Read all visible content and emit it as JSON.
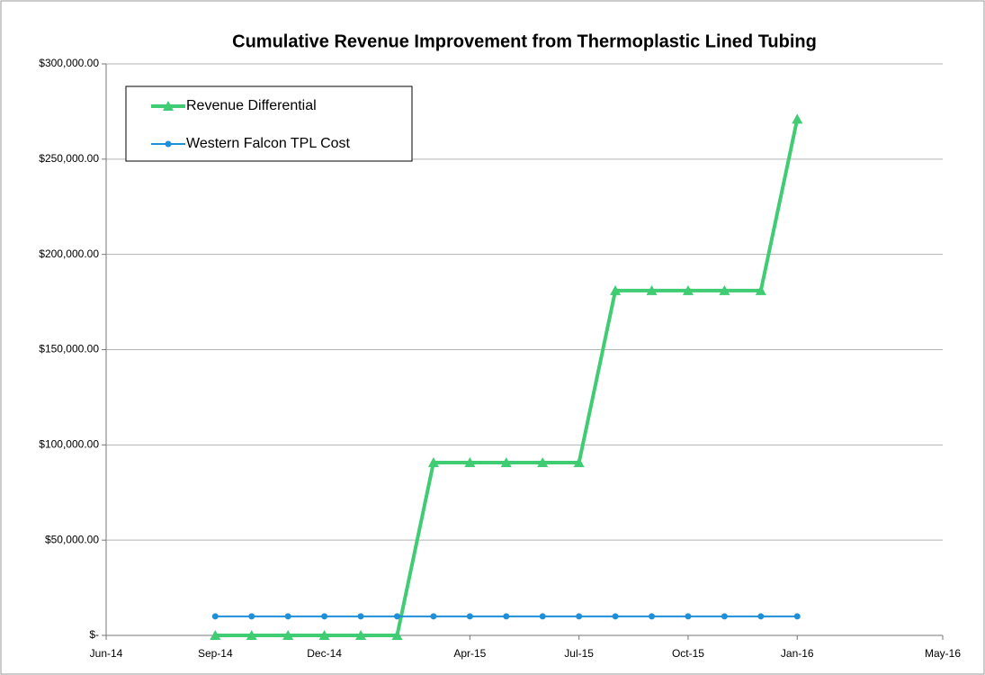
{
  "chart_data": {
    "type": "line",
    "title": "Cumulative Revenue Improvement from Thermoplastic Lined Tubing",
    "x": [
      "2014-09",
      "2014-10",
      "2014-11",
      "2014-12",
      "2015-01",
      "2015-02",
      "2015-03",
      "2015-04",
      "2015-05",
      "2015-06",
      "2015-07",
      "2015-08",
      "2015-09",
      "2015-10",
      "2015-11",
      "2015-12",
      "2016-01"
    ],
    "series": [
      {
        "name": "Revenue Differential",
        "color": "#3fcc72",
        "marker": "triangle",
        "values": [
          0,
          0,
          0,
          0,
          0,
          0,
          90700,
          90700,
          90700,
          90700,
          90700,
          181000,
          181000,
          181000,
          181000,
          181000,
          271000
        ]
      },
      {
        "name": "Western Falcon TPL Cost",
        "color": "#1f8fd8",
        "marker": "circle",
        "values": [
          10000,
          10000,
          10000,
          10000,
          10000,
          10000,
          10000,
          10000,
          10000,
          10000,
          10000,
          10000,
          10000,
          10000,
          10000,
          10000,
          10000
        ]
      }
    ],
    "xlim": [
      "2014-06",
      "2016-05"
    ],
    "xticks": [
      {
        "value": "2014-06",
        "label": "Jun-14"
      },
      {
        "value": "2014-09",
        "label": "Sep-14"
      },
      {
        "value": "2014-12",
        "label": "Dec-14"
      },
      {
        "value": "2015-04",
        "label": "Apr-15"
      },
      {
        "value": "2015-07",
        "label": "Jul-15"
      },
      {
        "value": "2015-10",
        "label": "Oct-15"
      },
      {
        "value": "2016-01",
        "label": "Jan-16"
      },
      {
        "value": "2016-05",
        "label": "May-16"
      }
    ],
    "ylim": [
      0,
      300000
    ],
    "yticks": [
      {
        "value": 0,
        "label": "$-"
      },
      {
        "value": 50000,
        "label": "$50,000.00"
      },
      {
        "value": 100000,
        "label": "$100,000.00"
      },
      {
        "value": 150000,
        "label": "$150,000.00"
      },
      {
        "value": 200000,
        "label": "$200,000.00"
      },
      {
        "value": 250000,
        "label": "$250,000.00"
      },
      {
        "value": 300000,
        "label": "$300,000.00"
      }
    ],
    "grid": true,
    "legend": "upper left"
  }
}
